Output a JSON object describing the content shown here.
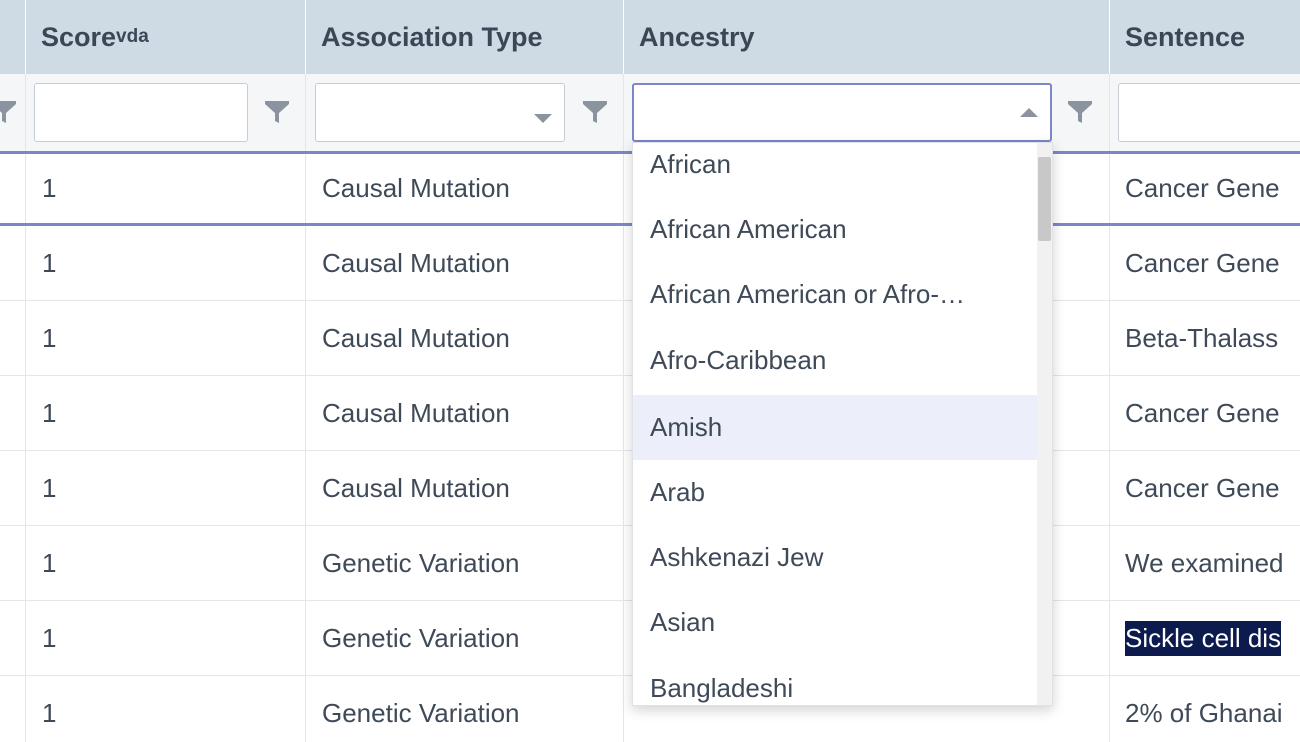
{
  "columns": {
    "score": {
      "label": "Score",
      "sub": "vda"
    },
    "association_type": {
      "label": "Association Type"
    },
    "ancestry": {
      "label": "Ancestry"
    },
    "sentence": {
      "label": "Sentence"
    }
  },
  "filters": {
    "score_value": "",
    "association_type_value": "",
    "ancestry_value": "",
    "sentence_value": ""
  },
  "rows": [
    {
      "score": "1",
      "association_type": "Causal Mutation",
      "sentence": "Cancer Gene"
    },
    {
      "score": "1",
      "association_type": "Causal Mutation",
      "sentence": "Cancer Gene"
    },
    {
      "score": "1",
      "association_type": "Causal Mutation",
      "sentence": "Beta-Thalass"
    },
    {
      "score": "1",
      "association_type": "Causal Mutation",
      "sentence": "Cancer Gene"
    },
    {
      "score": "1",
      "association_type": "Causal Mutation",
      "sentence": "Cancer Gene"
    },
    {
      "score": "1",
      "association_type": "Genetic Variation",
      "sentence": "We examined"
    },
    {
      "score": "1",
      "association_type": "Genetic Variation",
      "sentence": "Sickle cell dis"
    },
    {
      "score": "1",
      "association_type": "Genetic Variation",
      "sentence": "2% of Ghanai"
    }
  ],
  "ancestry_dropdown": {
    "options": [
      "African",
      "African American",
      "African American or Afro-…",
      "Afro-Caribbean",
      "Amish",
      "Arab",
      "Ashkenazi Jew",
      "Asian",
      "Bangladeshi"
    ],
    "hovered": "Amish"
  },
  "colors": {
    "header_bg": "#cfdbe4",
    "accent": "#7d86c6",
    "hover_bg": "#eceef9",
    "selection_bg": "#0d1a4e"
  }
}
